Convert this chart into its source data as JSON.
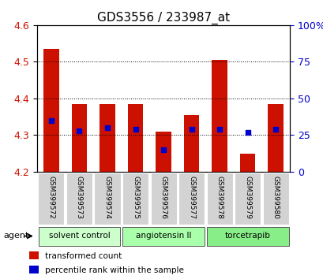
{
  "title": "GDS3556 / 233987_at",
  "samples": [
    "GSM399572",
    "GSM399573",
    "GSM399574",
    "GSM399575",
    "GSM399576",
    "GSM399577",
    "GSM399578",
    "GSM399579",
    "GSM399580"
  ],
  "bar_bottoms": [
    4.2,
    4.2,
    4.2,
    4.2,
    4.2,
    4.2,
    4.2,
    4.2,
    4.2
  ],
  "bar_tops": [
    4.535,
    4.385,
    4.385,
    4.385,
    4.31,
    4.355,
    4.505,
    4.248,
    4.385
  ],
  "percentile_ranks": [
    35,
    28,
    30,
    29,
    15,
    29,
    29,
    27,
    29
  ],
  "bar_color": "#cc1100",
  "dot_color": "#0000cc",
  "ylim": [
    4.2,
    4.6
  ],
  "y_left_ticks": [
    4.2,
    4.3,
    4.4,
    4.5,
    4.6
  ],
  "y_right_ticks": [
    0,
    25,
    50,
    75,
    100
  ],
  "y_right_labels": [
    "0",
    "25",
    "50",
    "75",
    "100%"
  ],
  "groups": [
    {
      "label": "solvent control",
      "indices": [
        0,
        1,
        2
      ],
      "color": "#ccffcc"
    },
    {
      "label": "angiotensin II",
      "indices": [
        3,
        4,
        5
      ],
      "color": "#aaffaa"
    },
    {
      "label": "torcetrapib",
      "indices": [
        6,
        7,
        8
      ],
      "color": "#88ee88"
    }
  ],
  "agent_label": "agent",
  "legend_items": [
    {
      "color": "#cc1100",
      "label": "transformed count"
    },
    {
      "color": "#0000cc",
      "label": "percentile rank within the sample"
    }
  ],
  "background_color": "#ffffff",
  "plot_bg_color": "#ffffff",
  "tick_label_color_left": "#cc1100",
  "tick_label_color_right": "#0000cc",
  "title_fontsize": 11,
  "bar_width": 0.55,
  "dot_size": 22
}
